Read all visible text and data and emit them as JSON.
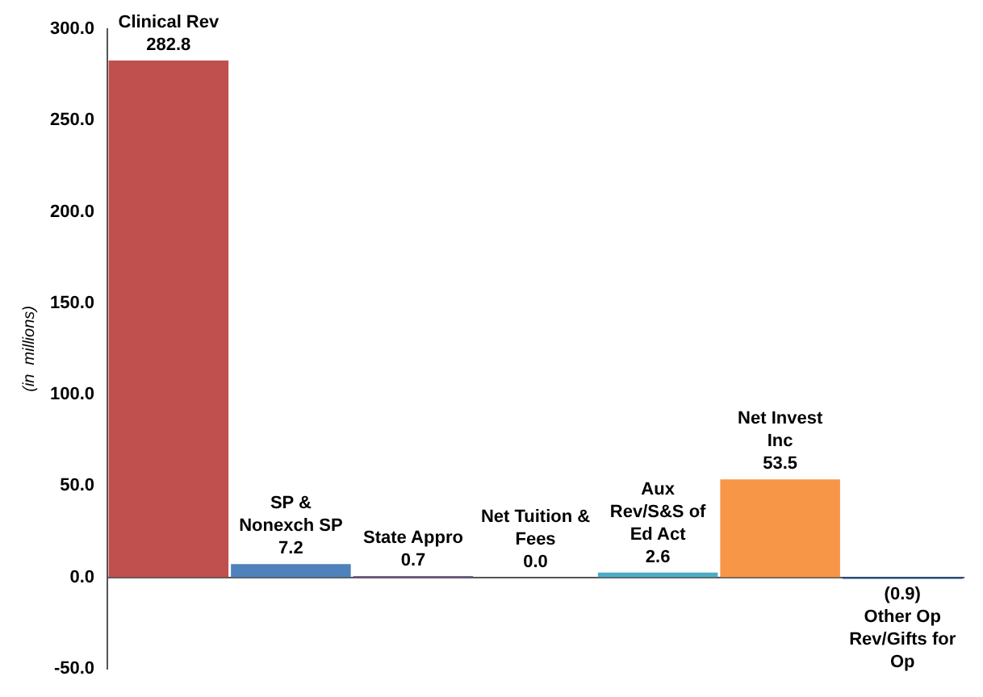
{
  "chart_data": {
    "type": "bar",
    "ylabel": "(in  millions)",
    "categories": [
      "Clinical Rev",
      "SP & Nonexch SP",
      "State Appro",
      "Net Tuition & Fees",
      "Aux Rev/S&S of Ed Act",
      "Net Invest Inc",
      "Other Op Rev/Gifts for Op"
    ],
    "values": [
      282.8,
      7.2,
      0.7,
      0.0,
      2.6,
      53.5,
      -0.9
    ],
    "value_labels": [
      "282.8",
      "7.2",
      "0.7",
      "0.0",
      "2.6",
      "53.5",
      "(0.9)"
    ],
    "colors": [
      "#c0504d",
      "#4f81bd",
      "#8064a2",
      "#9bbb59",
      "#4bacc6",
      "#f79646",
      "#1f497d"
    ],
    "ylim": [
      -50,
      300
    ],
    "yticks": [
      {
        "value": -50,
        "label": "-50.0"
      },
      {
        "value": 0,
        "label": "0.0"
      },
      {
        "value": 50,
        "label": "50.0"
      },
      {
        "value": 100,
        "label": "100.0"
      },
      {
        "value": 150,
        "label": "150.0"
      },
      {
        "value": 200,
        "label": "200.0"
      },
      {
        "value": 250,
        "label": "250.0"
      },
      {
        "value": 300,
        "label": "300.0"
      }
    ],
    "grid": false,
    "legend": false
  }
}
